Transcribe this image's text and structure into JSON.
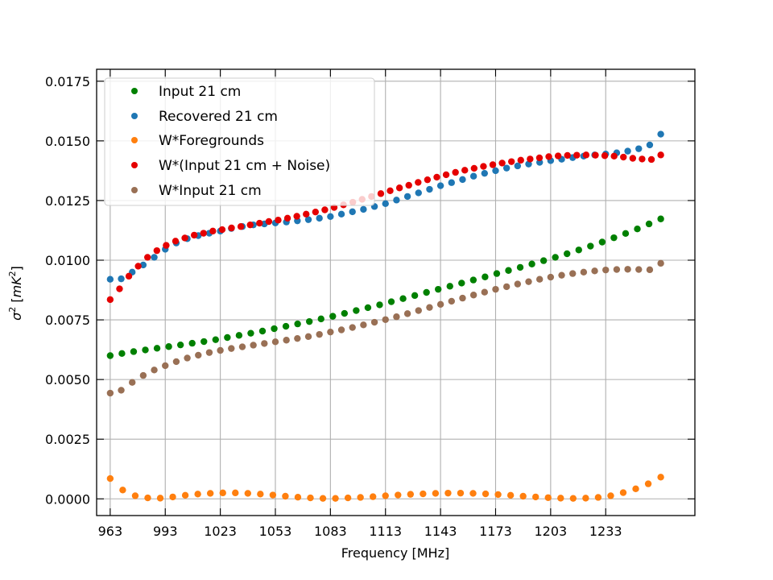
{
  "chart_data": {
    "type": "scatter",
    "xlabel": "Frequency [MHz]",
    "ylabel_main": "σ",
    "ylabel_sup": "2",
    "ylabel_unit_open": " [",
    "ylabel_unit": "mK",
    "ylabel_unit_sup": "2",
    "ylabel_unit_close": "]",
    "xlim": [
      955.6,
      1281.6
    ],
    "ylim": [
      -0.0007,
      0.018
    ],
    "xticks": [
      963,
      993,
      1023,
      1053,
      1083,
      1113,
      1143,
      1173,
      1203,
      1233
    ],
    "yticks": [
      0.0,
      0.0025,
      0.005,
      0.0075,
      0.01,
      0.0125,
      0.015,
      0.0175
    ],
    "ytick_labels": [
      "0.0000",
      "0.0025",
      "0.0050",
      "0.0075",
      "0.0100",
      "0.0125",
      "0.0150",
      "0.0175"
    ],
    "grid": true,
    "legend_position": "top-left",
    "x_start": 963,
    "x_step": 6,
    "series": [
      {
        "name": "Input 21 cm",
        "color": "#008000",
        "values": [
          0.006,
          0.00609,
          0.00617,
          0.00624,
          0.00631,
          0.00638,
          0.00645,
          0.00652,
          0.00659,
          0.00667,
          0.00676,
          0.00685,
          0.00694,
          0.00703,
          0.00713,
          0.00723,
          0.00733,
          0.00743,
          0.00754,
          0.00765,
          0.00777,
          0.00789,
          0.00801,
          0.00813,
          0.00826,
          0.00839,
          0.00852,
          0.00865,
          0.00878,
          0.00891,
          0.00904,
          0.00917,
          0.0093,
          0.00944,
          0.00957,
          0.0097,
          0.00984,
          0.00998,
          0.01012,
          0.01027,
          0.01043,
          0.01059,
          0.01076,
          0.01094,
          0.01112,
          0.01131,
          0.01152,
          0.01173
        ]
      },
      {
        "name": "Recovered 21 cm",
        "color": "#1f77b4",
        "values": [
          0.0092,
          0.00922,
          0.0095,
          0.0098,
          0.01012,
          0.01046,
          0.01072,
          0.0109,
          0.01103,
          0.01113,
          0.01122,
          0.01133,
          0.01141,
          0.01148,
          0.01152,
          0.01156,
          0.0116,
          0.01165,
          0.0117,
          0.01176,
          0.01183,
          0.01193,
          0.01203,
          0.01213,
          0.01225,
          0.01237,
          0.01252,
          0.01267,
          0.01282,
          0.01297,
          0.01312,
          0.01325,
          0.01338,
          0.01352,
          0.01364,
          0.01375,
          0.01386,
          0.01395,
          0.01403,
          0.0141,
          0.01417,
          0.01423,
          0.0143,
          0.01436,
          0.01441,
          0.01445,
          0.0145,
          0.01457,
          0.01467,
          0.01483,
          0.01528
        ]
      },
      {
        "name": "W*Foregrounds",
        "color": "#ff7f0e",
        "values": [
          0.00085,
          0.00037,
          0.00013,
          4e-05,
          3e-05,
          8e-05,
          0.00015,
          0.0002,
          0.00023,
          0.00025,
          0.00025,
          0.00023,
          0.0002,
          0.00016,
          0.00011,
          7e-05,
          4e-05,
          2e-05,
          2e-05,
          4e-05,
          6e-05,
          9e-05,
          0.00013,
          0.00016,
          0.00019,
          0.00021,
          0.00023,
          0.00024,
          0.00024,
          0.00023,
          0.00021,
          0.00018,
          0.00015,
          0.00011,
          8e-05,
          5e-05,
          3e-05,
          2e-05,
          3e-05,
          6e-05,
          0.00013,
          0.00026,
          0.00042,
          0.00063,
          0.00091
        ]
      },
      {
        "name": "W*(Input 21 cm + Noise)",
        "color": "#e50000",
        "values": [
          0.00835,
          0.0088,
          0.00933,
          0.00975,
          0.01012,
          0.0104,
          0.01062,
          0.0108,
          0.01093,
          0.01105,
          0.01113,
          0.01122,
          0.01128,
          0.01135,
          0.01141,
          0.01148,
          0.01155,
          0.01162,
          0.01168,
          0.01176,
          0.01184,
          0.01193,
          0.01202,
          0.01211,
          0.01221,
          0.01232,
          0.01243,
          0.01255,
          0.01267,
          0.01279,
          0.01291,
          0.01303,
          0.01314,
          0.01326,
          0.01337,
          0.01348,
          0.01358,
          0.01368,
          0.01377,
          0.01385,
          0.01393,
          0.014,
          0.01407,
          0.01413,
          0.01419,
          0.01424,
          0.01429,
          0.01434,
          0.01437,
          0.01439,
          0.0144,
          0.01441,
          0.0144,
          0.01438,
          0.01436,
          0.01432,
          0.01427,
          0.01424,
          0.01422,
          0.01441
        ]
      },
      {
        "name": "W*Input 21 cm",
        "color": "#997055",
        "values": [
          0.00443,
          0.00455,
          0.00488,
          0.00517,
          0.0054,
          0.00558,
          0.00575,
          0.0059,
          0.00602,
          0.00613,
          0.00622,
          0.0063,
          0.00637,
          0.00644,
          0.00651,
          0.00658,
          0.00665,
          0.00672,
          0.0068,
          0.00689,
          0.00699,
          0.00708,
          0.00718,
          0.00729,
          0.0074,
          0.00751,
          0.00763,
          0.00776,
          0.00789,
          0.00802,
          0.00815,
          0.00828,
          0.00841,
          0.00854,
          0.00866,
          0.00878,
          0.00889,
          0.009,
          0.0091,
          0.0092,
          0.00929,
          0.00937,
          0.00944,
          0.0095,
          0.00955,
          0.00959,
          0.00961,
          0.00962,
          0.00961,
          0.0096,
          0.00987
        ]
      }
    ]
  }
}
